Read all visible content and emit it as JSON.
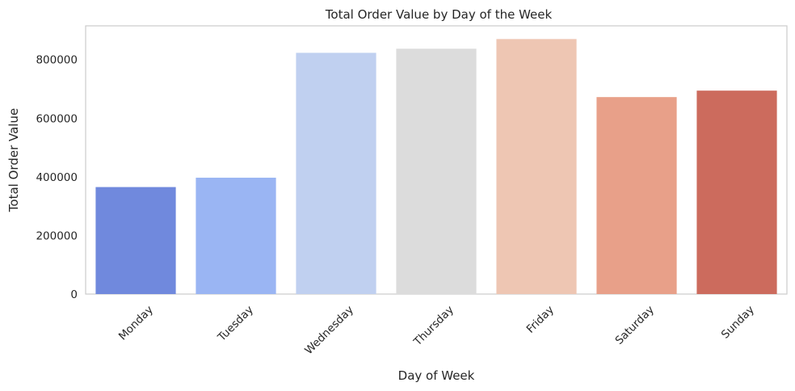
{
  "chart_data": {
    "type": "bar",
    "title": "Total Order Value by Day of the Week",
    "xlabel": "Day of Week",
    "ylabel": "Total Order Value",
    "categories": [
      "Monday",
      "Tuesday",
      "Wednesday",
      "Thursday",
      "Friday",
      "Saturday",
      "Sunday"
    ],
    "values": [
      365000,
      397000,
      823000,
      837000,
      870000,
      672000,
      694000
    ],
    "ylim": [
      0,
      915000
    ],
    "yticks": [
      0,
      200000,
      400000,
      600000,
      800000
    ],
    "ytick_labels": [
      "0",
      "200000",
      "400000",
      "600000",
      "800000"
    ],
    "colors": [
      "#7089dd",
      "#9ab5f3",
      "#c0d0f0",
      "#dcdcdc",
      "#eec6b3",
      "#e8a089",
      "#cc6b5d"
    ],
    "grid": false,
    "legend": "none"
  }
}
